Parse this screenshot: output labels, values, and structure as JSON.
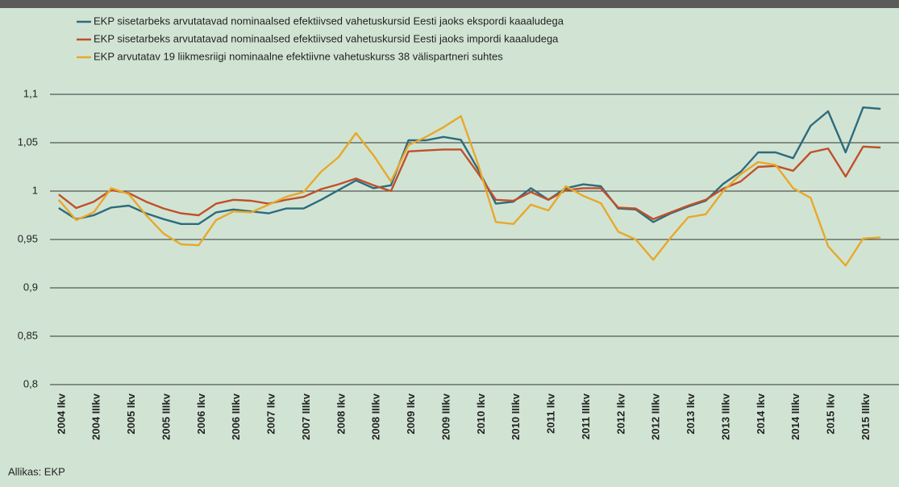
{
  "chart_data": {
    "type": "line",
    "categories": [
      "2004 Ikv",
      null,
      "2004 IIIkv",
      null,
      "2005 Ikv",
      null,
      "2005 IIIkv",
      null,
      "2006 Ikv",
      null,
      "2006 IIIkv",
      null,
      "2007 Ikv",
      null,
      "2007 IIIkv",
      null,
      "2008 Ikv",
      null,
      "2008 IIIkv",
      null,
      "2009 Ikv",
      null,
      "2009 IIIkv",
      null,
      "2010 Ikv",
      null,
      "2010 IIIkv",
      null,
      "2011 Ikv",
      null,
      "2011 IIIkv",
      null,
      "2012 Ikv",
      null,
      "2012 IIIkv",
      null,
      "2013 Ikv",
      null,
      "2013 IIIkv",
      null,
      "2014 Ikv",
      null,
      "2014 IIIkv",
      null,
      "2015 Ikv",
      null,
      "2015 IIIkv",
      null
    ],
    "series": [
      {
        "name": "EKP sisetarbeks arvutatavad nominaalsed efektiivsed vahetuskursid Eesti jaoks ekspordi kaaaludega",
        "color": "#2e6b7e",
        "values": [
          0.9825,
          0.971,
          0.975,
          0.983,
          0.985,
          0.977,
          0.971,
          0.966,
          0.966,
          0.978,
          0.981,
          0.979,
          0.977,
          0.982,
          0.982,
          0.991,
          1.001,
          1.011,
          1.003,
          1.006,
          1.0525,
          1.0525,
          1.056,
          1.053,
          1.022,
          0.987,
          0.989,
          1.003,
          0.991,
          1.003,
          1.007,
          1.005,
          0.982,
          0.981,
          0.968,
          0.977,
          0.984,
          0.99,
          1.0075,
          1.02,
          1.04,
          1.04,
          1.034,
          1.0675,
          1.0825,
          1.04,
          1.0865,
          1.085
        ]
      },
      {
        "name": "EKP sisetarbeks arvutatavad nominaalsed efektiivsed vahetuskursid Eesti jaoks impordi kaaaludega",
        "color": "#c0502a",
        "values": [
          0.9965,
          0.9825,
          0.989,
          1.001,
          0.998,
          0.989,
          0.982,
          0.977,
          0.975,
          0.987,
          0.991,
          0.99,
          0.987,
          0.991,
          0.994,
          1.002,
          1.007,
          1.013,
          1.006,
          1.0,
          1.041,
          1.042,
          1.043,
          1.043,
          1.018,
          0.991,
          0.99,
          0.999,
          0.991,
          1.001,
          1.003,
          1.003,
          0.983,
          0.982,
          0.971,
          0.978,
          0.985,
          0.991,
          1.0025,
          1.01,
          1.025,
          1.026,
          1.021,
          1.04,
          1.044,
          1.015,
          1.046,
          1.045
        ]
      },
      {
        "name": "EKP arvutatav 19 liikmesriigi nominaalne efektiivne vahetuskurss 38 välispartneri suhtes",
        "color": "#e8a82a",
        "values": [
          0.991,
          0.97,
          0.978,
          1.003,
          0.997,
          0.975,
          0.956,
          0.945,
          0.944,
          0.97,
          0.979,
          0.978,
          0.986,
          0.994,
          0.999,
          1.02,
          1.035,
          1.06,
          1.037,
          1.01,
          1.0475,
          1.056,
          1.066,
          1.0775,
          1.027,
          0.968,
          0.966,
          0.986,
          0.98,
          1.005,
          0.995,
          0.9875,
          0.958,
          0.95,
          0.929,
          0.952,
          0.973,
          0.976,
          1.0,
          1.0175,
          1.03,
          1.027,
          1.003,
          0.993,
          0.943,
          0.923,
          0.951,
          0.952
        ]
      }
    ],
    "ylim": [
      0.8,
      1.1
    ],
    "yticks": [
      {
        "value": 0.8,
        "label": "0,8"
      },
      {
        "value": 0.85,
        "label": "0,85"
      },
      {
        "value": 0.9,
        "label": "0,9"
      },
      {
        "value": 0.95,
        "label": "0,95"
      },
      1,
      {
        "value": 1.05,
        "label": "1,05"
      },
      {
        "value": 1.1,
        "label": "1,1"
      }
    ],
    "grid": true,
    "source": "Allikas: EKP"
  }
}
